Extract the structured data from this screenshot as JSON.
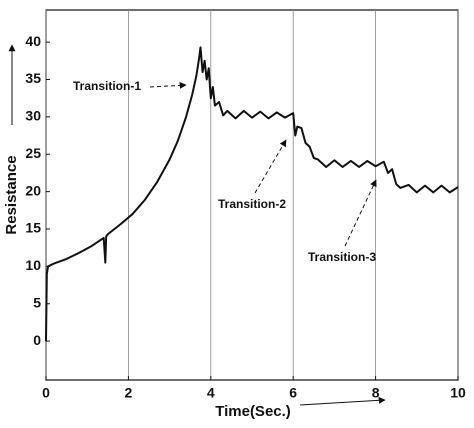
{
  "chart_data": {
    "type": "line",
    "x_label": "Time(Sec.)",
    "y_label": "Resistance",
    "annotations": [
      "Transition-1",
      "Transition-2",
      "Transition-3"
    ],
    "x": [
      0,
      0.02,
      0.05,
      0.2,
      0.5,
      0.8,
      1.1,
      1.4,
      1.44,
      1.46,
      1.5,
      1.8,
      2.1,
      2.4,
      2.7,
      3.0,
      3.2,
      3.4,
      3.55,
      3.65,
      3.72,
      3.75,
      3.8,
      3.85,
      3.9,
      3.95,
      4.0,
      4.05,
      4.1,
      4.2,
      4.3,
      4.4,
      4.6,
      4.8,
      5.0,
      5.2,
      5.4,
      5.6,
      5.8,
      6.0,
      6.05,
      6.1,
      6.2,
      6.3,
      6.4,
      6.5,
      6.6,
      6.8,
      7.0,
      7.2,
      7.4,
      7.6,
      7.8,
      8.0,
      8.2,
      8.3,
      8.4,
      8.5,
      8.6,
      8.8,
      9.0,
      9.2,
      9.4,
      9.6,
      9.8,
      10
    ],
    "series": [
      {
        "color": "#111111",
        "values": [
          0,
          9,
          10,
          10.4,
          11,
          11.8,
          12.7,
          13.8,
          10.5,
          14,
          14.3,
          15.6,
          17,
          18.9,
          21.3,
          24.3,
          26.8,
          30,
          33,
          35.5,
          38,
          39.3,
          36,
          37.5,
          35,
          36.5,
          32.5,
          34,
          31.5,
          32,
          30.2,
          30.8,
          29.8,
          30.8,
          29.9,
          30.7,
          29.8,
          30.6,
          29.9,
          30.5,
          27.5,
          28.7,
          28.5,
          26.5,
          26,
          24.5,
          24.3,
          23.3,
          24.2,
          23.3,
          24.1,
          23.3,
          24.1,
          23.4,
          24,
          22.5,
          23,
          21,
          20.5,
          20.9,
          19.9,
          20.8,
          19.9,
          20.8,
          19.9,
          20.6
        ]
      }
    ],
    "xlim": [
      0,
      10
    ],
    "ylim": [
      -5.2,
      44.3
    ],
    "xticks": [
      0,
      2,
      4,
      6,
      8,
      10
    ],
    "yticks": [
      0,
      5,
      10,
      15,
      20,
      25,
      30,
      35,
      40
    ],
    "grid": "x"
  }
}
